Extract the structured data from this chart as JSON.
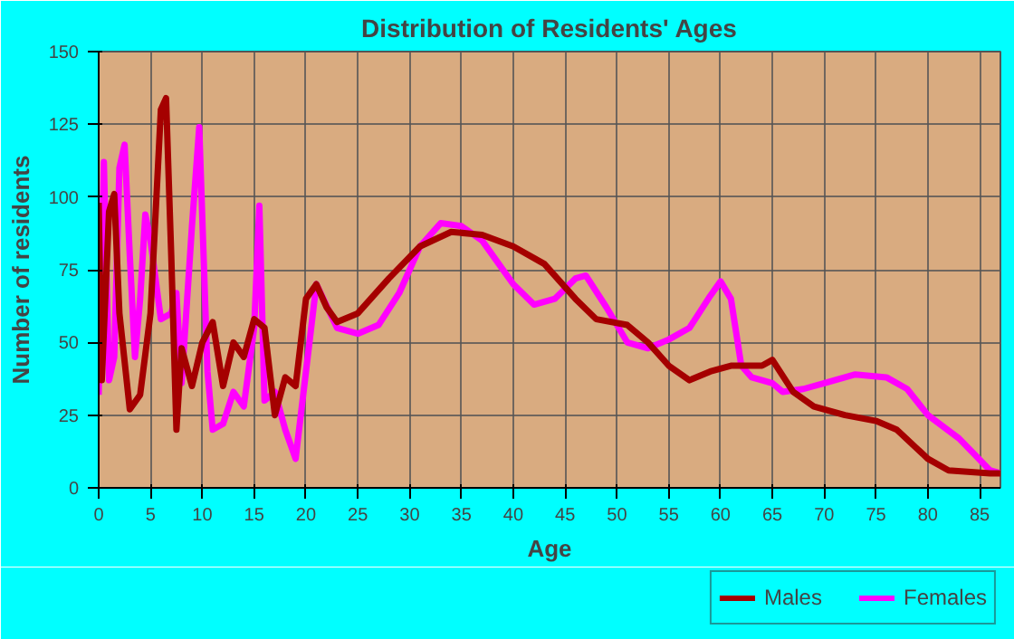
{
  "chart_data": {
    "type": "line",
    "title": "Distribution of Residents' Ages",
    "xlabel": "Age",
    "ylabel": "Number of residents",
    "xlim": [
      0,
      87
    ],
    "xticks": [
      0,
      5,
      10,
      15,
      20,
      25,
      30,
      35,
      40,
      45,
      50,
      55,
      60,
      65,
      70,
      75,
      80,
      85
    ],
    "ylim": [
      0,
      150
    ],
    "yticks": [
      0,
      25,
      50,
      75,
      100,
      125,
      150
    ],
    "grid": true,
    "legend": "bottom right",
    "line_style": "solid",
    "series": [
      {
        "name": "Males",
        "color": "#a50000",
        "x": [
          0,
          0.3,
          1,
          1.5,
          2,
          3,
          4,
          5,
          6,
          6.5,
          7,
          7.5,
          8,
          9,
          10,
          11,
          12,
          13,
          14,
          15,
          16,
          17,
          18,
          19,
          20,
          21,
          22,
          23,
          25,
          28,
          31,
          34,
          37,
          40,
          43,
          46,
          48,
          51,
          53,
          55,
          57,
          59,
          61,
          64,
          65,
          67,
          69,
          72,
          75,
          77,
          80,
          82,
          86,
          87
        ],
        "values": [
          98,
          37,
          95,
          101,
          60,
          27,
          32,
          60,
          130,
          134,
          80,
          20,
          48,
          35,
          50,
          57,
          35,
          50,
          45,
          58,
          55,
          25,
          38,
          35,
          65,
          70,
          62,
          57,
          60,
          72,
          83,
          88,
          87,
          83,
          77,
          65,
          58,
          56,
          50,
          42,
          37,
          40,
          42,
          42,
          44,
          33,
          28,
          25,
          23,
          20,
          10,
          6,
          5,
          5
        ]
      },
      {
        "name": "Females",
        "color": "#ff00ff",
        "x": [
          0,
          0.5,
          1,
          1.5,
          2,
          2.5,
          3,
          3.5,
          4,
          4.5,
          5,
          6,
          7,
          7.5,
          8,
          9,
          9.7,
          10.5,
          11,
          12,
          13,
          14,
          15,
          15.5,
          16,
          17,
          18,
          19,
          20,
          21,
          23,
          25,
          27,
          29,
          31,
          33,
          35,
          37,
          40,
          42,
          44,
          46,
          47,
          49,
          51,
          53,
          55,
          57,
          59,
          60,
          61,
          62,
          63,
          65,
          66,
          68,
          70,
          73,
          76,
          78,
          80,
          83,
          86,
          87
        ],
        "values": [
          32,
          112,
          37,
          45,
          110,
          118,
          80,
          45,
          65,
          94,
          85,
          58,
          60,
          67,
          36,
          90,
          124,
          40,
          20,
          22,
          33,
          28,
          55,
          97,
          30,
          33,
          20,
          10,
          40,
          70,
          55,
          53,
          56,
          67,
          83,
          91,
          90,
          85,
          70,
          63,
          65,
          72,
          73,
          62,
          50,
          48,
          51,
          55,
          66,
          71,
          65,
          42,
          38,
          36,
          33,
          34,
          36,
          39,
          38,
          34,
          25,
          17,
          6,
          5
        ]
      }
    ]
  }
}
